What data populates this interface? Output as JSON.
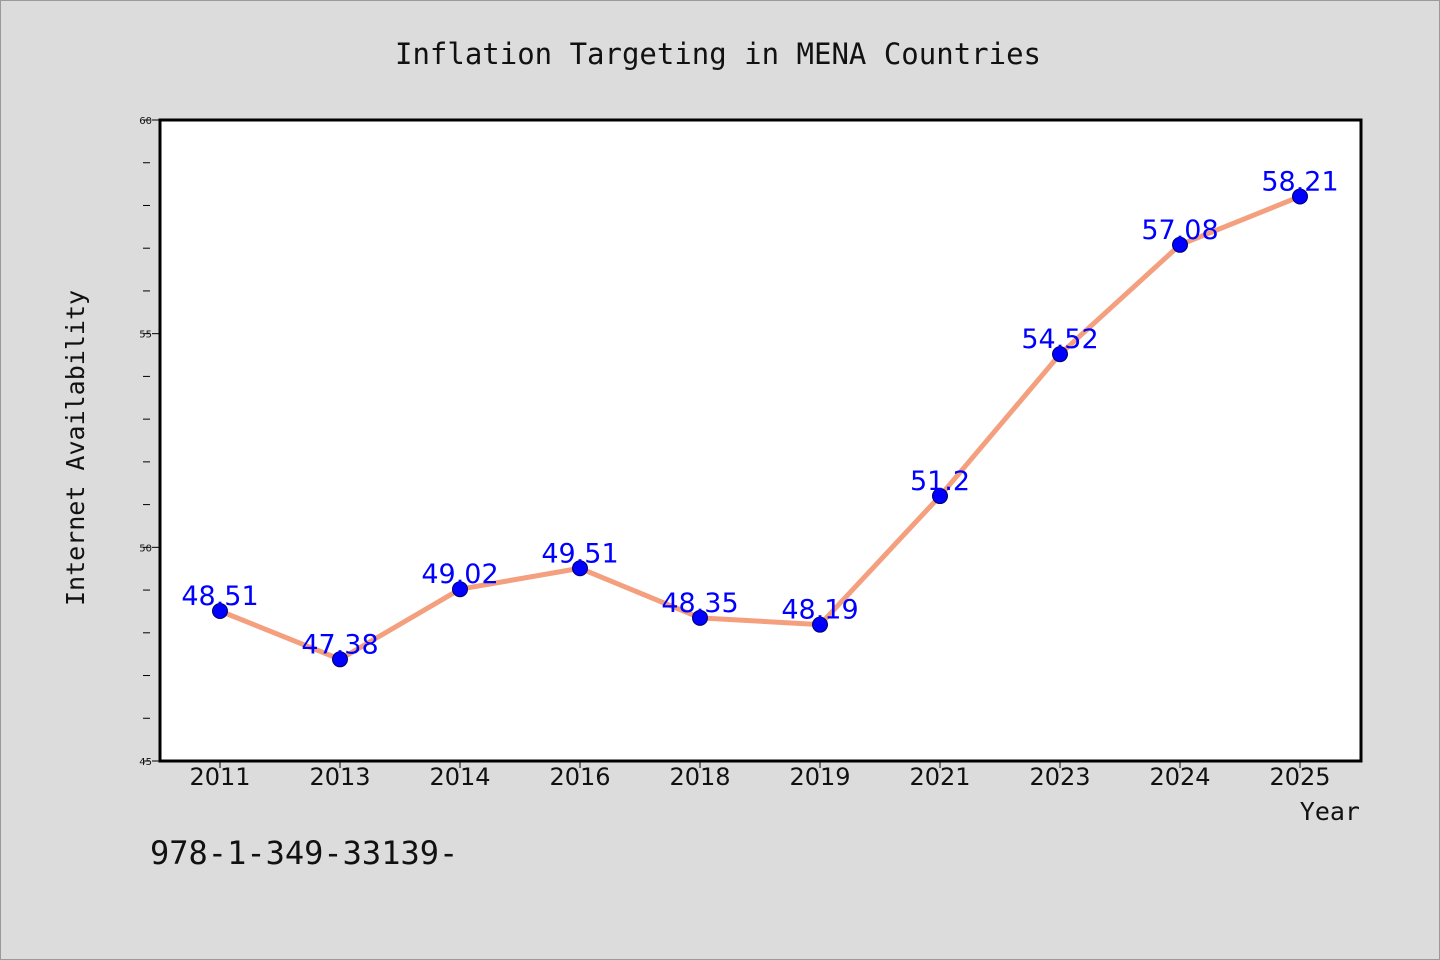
{
  "chart_data": {
    "type": "line",
    "title": "Inflation Targeting in MENA Countries",
    "xlabel": "Year",
    "ylabel": "Internet Availability",
    "categories": [
      "2011",
      "2013",
      "2014",
      "2016",
      "2018",
      "2019",
      "2021",
      "2023",
      "2024",
      "2025"
    ],
    "series": [
      {
        "values": [
          48.51,
          47.38,
          49.02,
          49.51,
          48.35,
          48.19,
          51.2,
          54.52,
          57.08,
          58.21
        ],
        "labels": [
          "48.51",
          "47.38",
          "49.02",
          "49.51",
          "48.35",
          "48.19",
          "51.2",
          "54.52",
          "57.08",
          "58.21"
        ]
      }
    ],
    "ylim": [
      45,
      60
    ],
    "yticks": [
      45,
      50,
      55,
      60
    ],
    "y_minor_step": 1,
    "grid": false,
    "legend": "none",
    "colors": {
      "line": "#f4a07e",
      "marker": "#0000ff",
      "data_label": "#0000ff",
      "page_background": "#dcdcdc",
      "plot_background": "#ffffff"
    }
  },
  "footer_text": "978-1-349-33139-"
}
